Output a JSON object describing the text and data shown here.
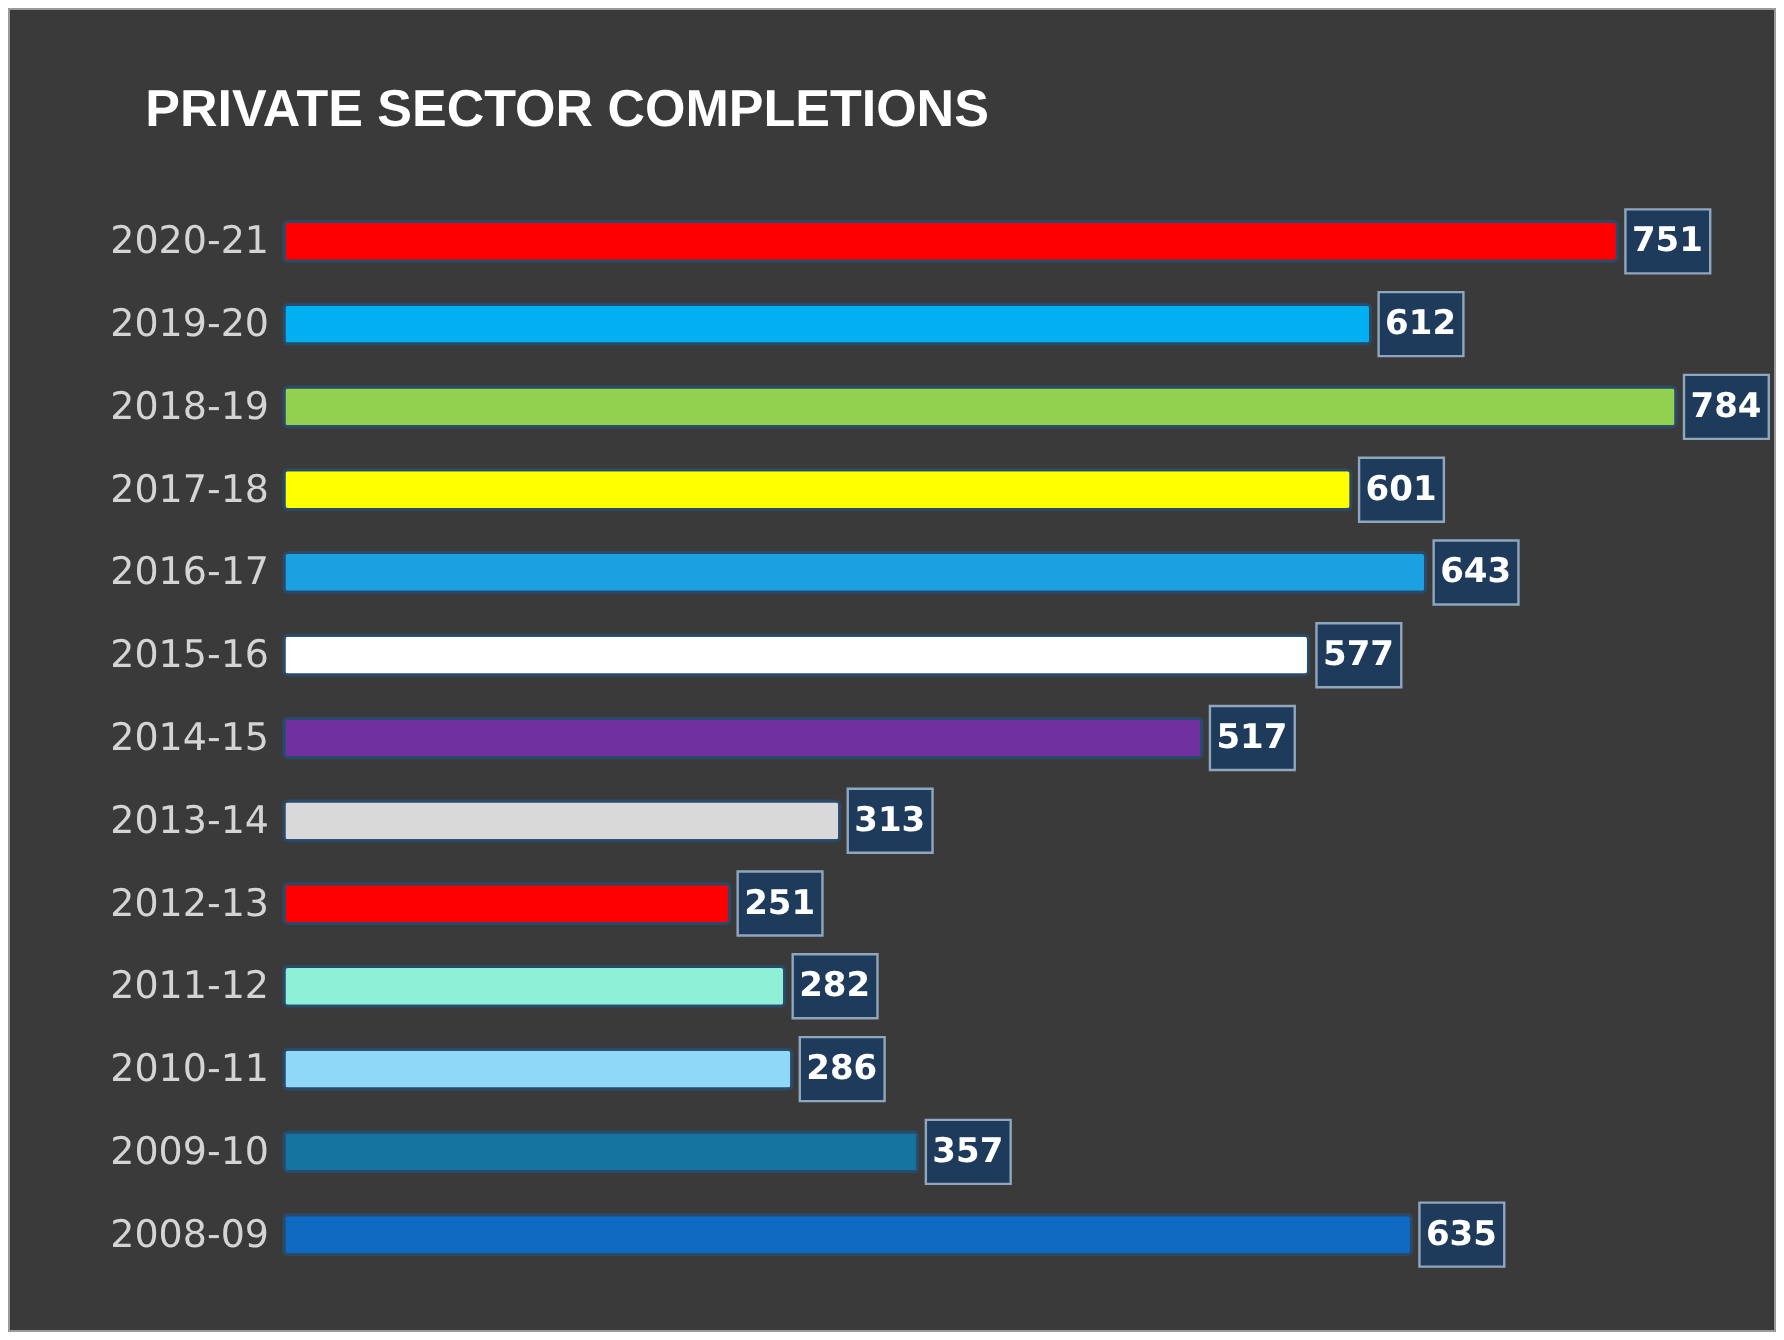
{
  "chart_data": {
    "type": "bar",
    "orientation": "horizontal",
    "title": "PRIVATE SECTOR COMPLETIONS",
    "categories": [
      "2020-21",
      "2019-20",
      "2018-19",
      "2017-18",
      "2016-17",
      "2015-16",
      "2014-15",
      "2013-14",
      "2012-13",
      "2011-12",
      "2010-11",
      "2009-10",
      "2008-09"
    ],
    "values": [
      751,
      612,
      784,
      601,
      643,
      577,
      517,
      313,
      251,
      282,
      286,
      357,
      635
    ],
    "colors": [
      "#ff0000",
      "#00b0f0",
      "#92d050",
      "#ffff00",
      "#1ba1e2",
      "#ffffff",
      "#7030a0",
      "#d9d9d9",
      "#ff0000",
      "#8ff0d8",
      "#8fd8f8",
      "#16759f",
      "#0f6bc1"
    ],
    "data_labels": true
  }
}
